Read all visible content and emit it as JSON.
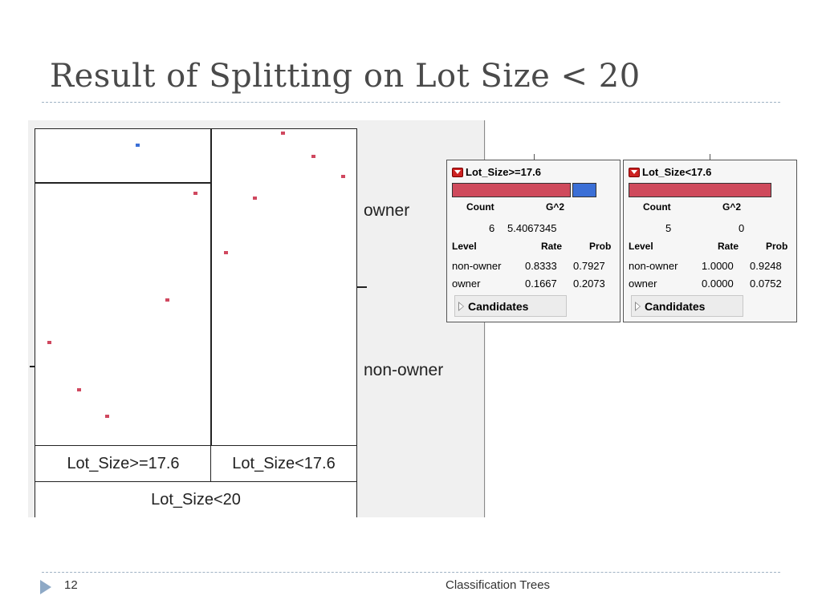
{
  "slide": {
    "title": "Result of Splitting on Lot Size < 20",
    "page_number": "12",
    "footer": "Classification Trees"
  },
  "mosaic": {
    "y_labels": [
      "owner",
      "non-owner"
    ],
    "x_labels": [
      "Lot_Size>=17.6",
      "Lot_Size<17.6"
    ],
    "x_parent": "Lot_Size<20",
    "colors": {
      "non_owner": "#d0485f",
      "owner": "#3b6fd6"
    }
  },
  "nodes": [
    {
      "title": "Lot_Size>=17.6",
      "count_label": "Count",
      "g2_label": "G^2",
      "count": "6",
      "g2": "5.4067345",
      "level_label": "Level",
      "rate_label": "Rate",
      "prob_label": "Prob",
      "rows": [
        {
          "level": "non-owner",
          "rate": "0.8333",
          "prob": "0.7927"
        },
        {
          "level": "owner",
          "rate": "0.1667",
          "prob": "0.2073"
        }
      ],
      "candidates": "Candidates",
      "bar_fraction_non_owner": 0.8333
    },
    {
      "title": "Lot_Size<17.6",
      "count_label": "Count",
      "g2_label": "G^2",
      "count": "5",
      "g2": "0",
      "level_label": "Level",
      "rate_label": "Rate",
      "prob_label": "Prob",
      "rows": [
        {
          "level": "non-owner",
          "rate": "1.0000",
          "prob": "0.9248"
        },
        {
          "level": "owner",
          "rate": "0.0000",
          "prob": "0.0752"
        }
      ],
      "candidates": "Candidates",
      "bar_fraction_non_owner": 1.0
    }
  ]
}
